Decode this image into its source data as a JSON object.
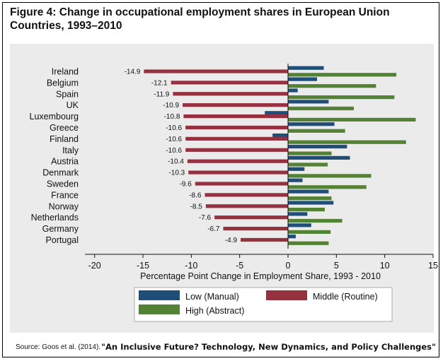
{
  "title": "Figure 4: Change in occupational employment shares in European Union Countries, 1993–2010",
  "source": "Source: Goos et al. (2014).",
  "credit": "\"An Inclusive Future? Technology, New Dynamics, and Policy Challenges\"",
  "colors": {
    "low": "#1f4e79",
    "middle": "#963240",
    "high": "#548235",
    "panel": "#ebebeb"
  },
  "chart_data": {
    "type": "bar",
    "orientation": "horizontal",
    "categories": [
      "Ireland",
      "Belgium",
      "Spain",
      "UK",
      "Luxembourg",
      "Greece",
      "Finland",
      "Italy",
      "Austria",
      "Denmark",
      "Sweden",
      "France",
      "Norway",
      "Netherlands",
      "Germany",
      "Portugal"
    ],
    "series": [
      {
        "name": "Low (Manual)",
        "key": "low",
        "values": [
          3.7,
          3.0,
          1.0,
          4.2,
          -2.4,
          4.8,
          -1.6,
          6.1,
          6.4,
          1.7,
          1.5,
          4.2,
          4.7,
          2.0,
          2.4,
          0.8
        ]
      },
      {
        "name": "Middle (Routine)",
        "key": "middle",
        "values": [
          -14.9,
          -12.1,
          -11.9,
          -10.9,
          -10.8,
          -10.6,
          -10.6,
          -10.6,
          -10.4,
          -10.3,
          -9.6,
          -8.6,
          -8.5,
          -7.6,
          -6.7,
          -4.9
        ]
      },
      {
        "name": "High (Abstract)",
        "key": "high",
        "values": [
          11.2,
          9.1,
          11.0,
          6.8,
          13.2,
          5.9,
          12.2,
          4.5,
          4.1,
          8.6,
          8.1,
          4.5,
          3.8,
          5.6,
          4.4,
          4.2
        ]
      }
    ],
    "data_labels": [
      "-14.9",
      "-12.1",
      "-11.9",
      "-10.9",
      "-10.8",
      "-10.6",
      "-10.6",
      "-10.6",
      "-10.4",
      "-10.3",
      "-9.6",
      "-8.6",
      "-8.5",
      "-7.6",
      "-6.7",
      "-4.9"
    ],
    "xlabel": "Percentage Point Change in Employment Share, 1993 - 2010",
    "xlim": [
      -21,
      15
    ],
    "xticks": [
      -20,
      -15,
      -10,
      -5,
      0,
      5,
      10,
      15
    ],
    "legend_position": "bottom",
    "grid": false
  }
}
